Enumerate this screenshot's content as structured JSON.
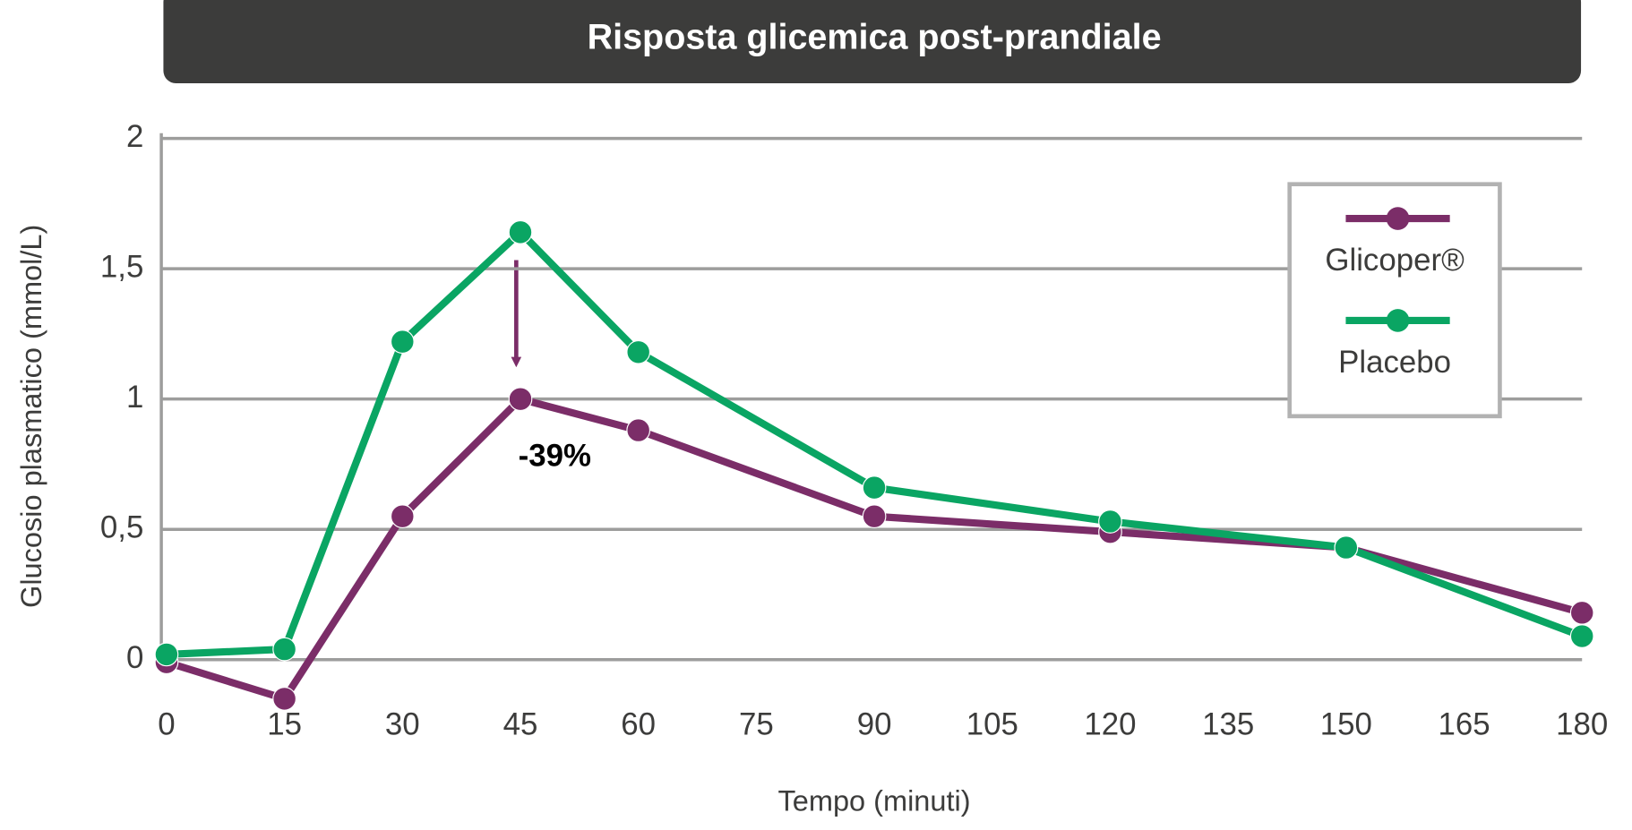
{
  "chart_data": {
    "type": "line",
    "title": "Risposta glicemica post-prandiale",
    "x_label": "Tempo (minuti)",
    "y_label": "Glucosio plasmatico (mmol/L)",
    "x": [
      0,
      15,
      30,
      45,
      60,
      90,
      120,
      150,
      180
    ],
    "series": [
      {
        "name": "Glicoper®",
        "color": "#7b2d68",
        "values": [
          -0.01,
          -0.15,
          0.55,
          1.0,
          0.88,
          0.55,
          0.49,
          0.43,
          0.18
        ]
      },
      {
        "name": "Placebo",
        "color": "#0aa563",
        "values": [
          0.02,
          0.04,
          1.22,
          1.64,
          1.18,
          0.66,
          0.53,
          0.43,
          0.09
        ]
      }
    ],
    "xlim": [
      0,
      180
    ],
    "xticks": [
      0,
      15,
      30,
      45,
      60,
      75,
      90,
      105,
      120,
      135,
      150,
      165,
      180
    ],
    "ylim": [
      0,
      2
    ],
    "yticks": [
      0,
      {
        "value": 0.5,
        "label": "0,5"
      },
      1,
      {
        "value": 1.5,
        "label": "1,5"
      },
      2
    ],
    "grid": true,
    "legend": "upper right",
    "annotation": "-39%"
  }
}
